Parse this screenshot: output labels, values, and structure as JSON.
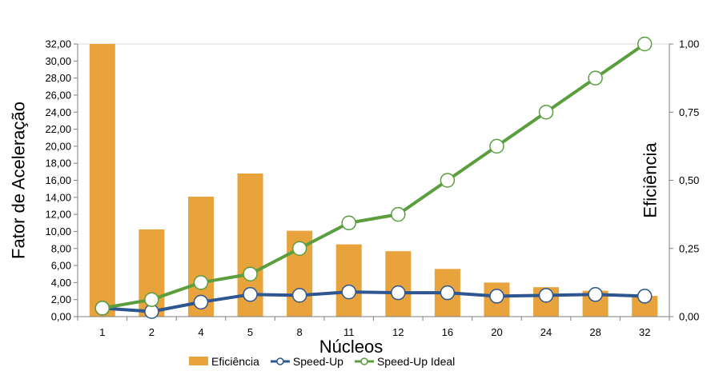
{
  "chart_data": {
    "type": "bar+line",
    "title": "",
    "categories": [
      "1",
      "2",
      "4",
      "5",
      "8",
      "11",
      "12",
      "16",
      "20",
      "24",
      "28",
      "32"
    ],
    "xlabel": "Núcleos",
    "ylabel_left": "Fator de Aceleração",
    "ylabel_right": "Eficiência",
    "ylim_left": [
      0,
      32
    ],
    "ylim_right": [
      0,
      1
    ],
    "left_ticks": [
      "0,00",
      "2,00",
      "4,00",
      "6,00",
      "8,00",
      "10,00",
      "12,00",
      "14,00",
      "16,00",
      "18,00",
      "20,00",
      "22,00",
      "24,00",
      "26,00",
      "28,00",
      "30,00",
      "32,00"
    ],
    "right_ticks": [
      "0,00",
      "0,25",
      "0,50",
      "0,75",
      "1,00"
    ],
    "grid": false,
    "legend_position": "bottom",
    "series": [
      {
        "name": "Eficiência",
        "kind": "bar",
        "axis": "right",
        "color": "#E8A33C",
        "values": [
          1.0,
          0.32,
          0.44,
          0.525,
          0.315,
          0.265,
          0.24,
          0.175,
          0.125,
          0.108,
          0.095,
          0.076
        ]
      },
      {
        "name": "Speed-Up",
        "kind": "line",
        "axis": "left",
        "color": "#2E5690",
        "values": [
          1.0,
          0.6,
          1.7,
          2.6,
          2.5,
          2.9,
          2.8,
          2.8,
          2.4,
          2.5,
          2.6,
          2.4
        ]
      },
      {
        "name": "Speed-Up Ideal",
        "kind": "line",
        "axis": "left",
        "color": "#5A9E3E",
        "values": [
          1,
          2,
          4,
          5,
          8,
          11,
          12,
          16,
          20,
          24,
          28,
          32
        ]
      }
    ]
  }
}
